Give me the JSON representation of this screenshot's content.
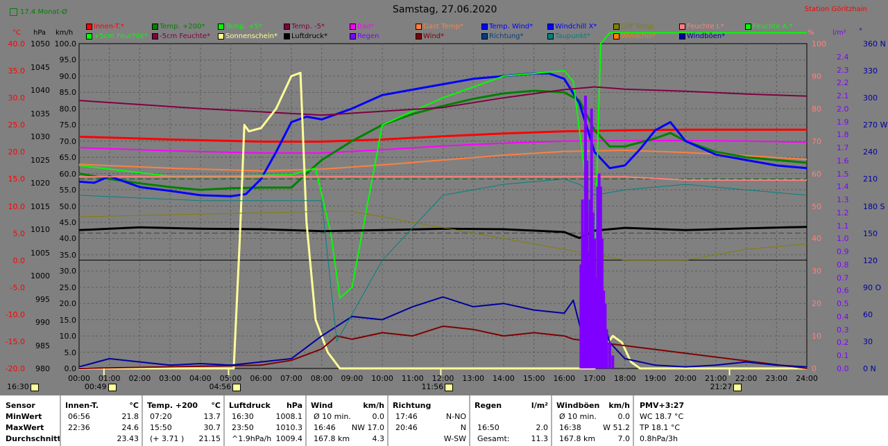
{
  "header": {
    "title": "Samstag, 27.06.2020",
    "station": "Station Göritzhain",
    "monthly_avg": "17.4 Monat-Ø"
  },
  "legend": [
    {
      "label": "Innen-T.*",
      "color": "#ff0000"
    },
    {
      "label": "Temp. +200*",
      "color": "#008000"
    },
    {
      "label": "Temp. +5*",
      "color": "#00ff00"
    },
    {
      "label": "Temp. -5*",
      "color": "#800040"
    },
    {
      "label": "Bad*",
      "color": "#ff00ff"
    },
    {
      "label": "Gast Temp*",
      "color": "#ff8040"
    },
    {
      "label": "Temp. Wind*",
      "color": "#0000ff"
    },
    {
      "label": "Windchill X*",
      "color": "#0000ff"
    },
    {
      "label": "Diff Temp.",
      "color": "#808000"
    },
    {
      "label": "Feuchte I.*",
      "color": "#ff8080"
    },
    {
      "label": "Feuchte A.*",
      "color": "#00ff00"
    },
    {
      "label": "+5cm Feuchte*",
      "color": "#00ff00"
    },
    {
      "label": "-5cm Feuchte*",
      "color": "#800040"
    },
    {
      "label": "Sonnenschein*",
      "color": "#ffff99"
    },
    {
      "label": "Luftdruck*",
      "color": "#000000"
    },
    {
      "label": "Regen",
      "color": "#8000ff"
    },
    {
      "label": "Wind*",
      "color": "#800000"
    },
    {
      "label": "Richtung*",
      "color": "#004080"
    },
    {
      "label": "Taupunkt*",
      "color": "#008080"
    },
    {
      "label": "Windchill*",
      "color": "#ff8000"
    },
    {
      "label": "Windböen*",
      "color": "#0000a0"
    }
  ],
  "axes_units": {
    "c": "°C",
    "hpa": "hPa",
    "kmh": "km/h",
    "pct": "%",
    "rain": "l/m²",
    "dir": "°"
  },
  "sun_markers": [
    {
      "label": "16:30",
      "hour": null
    },
    {
      "label": "00:49",
      "hour": 0.82
    },
    {
      "label": "04:56",
      "hour": 4.93
    },
    {
      "label": "11:56",
      "hour": 11.93
    },
    {
      "label": "21:27",
      "hour": 21.45
    }
  ],
  "chart_data": {
    "type": "line",
    "title": "Samstag, 27.06.2020",
    "x_ticks": [
      "00:00",
      "01:00",
      "02:00",
      "03:00",
      "04:00",
      "05:00",
      "06:00",
      "07:00",
      "08:00",
      "09:00",
      "10:00",
      "11:00",
      "12:00",
      "13:00",
      "14:00",
      "15:00",
      "16:00",
      "17:00",
      "18:00",
      "19:00",
      "20:00",
      "21:00",
      "22:00",
      "23:00",
      "24:00"
    ],
    "x_range_hours": [
      0,
      24
    ],
    "axes": {
      "temp_c": {
        "range": [
          -20,
          40
        ],
        "ticks": [
          "40.0",
          "35.0",
          "30.0",
          "25.0",
          "20.0",
          "15.0",
          "10.0",
          "5.0",
          "0.0",
          "-5.0",
          "-10.0",
          "-15.0",
          "-20.0"
        ],
        "color": "#ff0000"
      },
      "pressure_hpa": {
        "range": [
          980,
          1050
        ],
        "ticks": [
          "1050",
          "1045",
          "1040",
          "1035",
          "1030",
          "1025",
          "1020",
          "1015",
          "1010",
          "1005",
          "1000",
          "995",
          "990",
          "985",
          "980"
        ]
      },
      "wind_kmh": {
        "range": [
          0,
          100
        ],
        "ticks": [
          "100.0",
          "95.0",
          "90.0",
          "85.0",
          "80.0",
          "75.0",
          "70.0",
          "65.0",
          "60.0",
          "55.0",
          "50.0",
          "45.0",
          "40.0",
          "35.0",
          "30.0",
          "25.0",
          "20.0",
          "15.0",
          "10.0",
          "5.0",
          "0.0"
        ]
      },
      "humidity_pct": {
        "range": [
          0,
          100
        ],
        "ticks": [
          "100",
          "90",
          "80",
          "70",
          "60",
          "50",
          "40",
          "30",
          "20",
          "10",
          "0"
        ],
        "color": "#ff8080"
      },
      "rain_lm2": {
        "range": [
          0,
          2.5
        ],
        "ticks": [
          "2.4",
          "2.3",
          "2.2",
          "2.1",
          "2.0",
          "1.9",
          "1.8",
          "1.7",
          "1.6",
          "1.5",
          "1.4",
          "1.3",
          "1.2",
          "1.1",
          "1.0",
          "0.9",
          "0.8",
          "0.7",
          "0.6",
          "0.5",
          "0.4",
          "0.3",
          "0.2",
          "0.1",
          "0.0"
        ],
        "color": "#8000ff"
      },
      "direction_deg": {
        "range": [
          0,
          360
        ],
        "ticks": [
          "360 N",
          "330",
          "300",
          "270 W",
          "240",
          "210",
          "180 S",
          "150",
          "120",
          "90 O",
          "60",
          "30",
          "0 N"
        ]
      }
    },
    "series": [
      {
        "name": "Innen-T.*",
        "axis": "temp_c",
        "color": "#ff0000",
        "width": 3,
        "x": [
          0,
          3,
          6,
          8,
          10,
          12,
          14,
          16,
          18,
          20,
          22,
          24
        ],
        "y": [
          22.8,
          22.3,
          21.9,
          21.9,
          22.3,
          22.9,
          23.4,
          23.8,
          24.0,
          24.1,
          24.1,
          24.1
        ]
      },
      {
        "name": "Bad*",
        "axis": "temp_c",
        "color": "#ff00ff",
        "width": 2,
        "x": [
          0,
          3,
          6,
          8,
          10,
          12,
          14,
          16,
          18,
          20,
          22,
          24
        ],
        "y": [
          20.8,
          20.2,
          19.8,
          19.8,
          20.4,
          21.1,
          21.6,
          22.0,
          22.1,
          22.1,
          22.0,
          21.8
        ]
      },
      {
        "name": "Gast Temp*",
        "axis": "temp_c",
        "color": "#ff8040",
        "width": 2,
        "x": [
          0,
          3,
          6,
          8,
          10,
          12,
          14,
          16,
          18,
          20,
          22,
          24
        ],
        "y": [
          17.7,
          17.0,
          16.5,
          16.8,
          17.6,
          18.5,
          19.4,
          20.1,
          20.3,
          19.9,
          19.3,
          18.6
        ]
      },
      {
        "name": "Temp. +200*",
        "axis": "temp_c",
        "color": "#008000",
        "width": 3,
        "x": [
          0,
          1,
          2,
          3,
          4,
          5,
          6,
          7,
          7.5,
          8,
          9,
          10,
          11,
          12,
          13,
          14,
          15,
          16,
          16.5,
          17,
          17.5,
          18,
          19,
          19.5,
          20,
          21,
          22,
          23,
          24
        ],
        "y": [
          16.0,
          15.0,
          14.2,
          13.5,
          13.0,
          13.3,
          13.4,
          13.4,
          16.0,
          18.5,
          22.0,
          25.0,
          27.0,
          28.5,
          29.8,
          30.8,
          31.3,
          31.0,
          29.5,
          24.0,
          21.0,
          21.0,
          22.5,
          23.5,
          22.0,
          20.0,
          19.0,
          18.5,
          18.0
        ]
      },
      {
        "name": "Temp. Wind*",
        "axis": "temp_c",
        "color": "#0000ff",
        "width": 3,
        "x": [
          0,
          0.5,
          1,
          2,
          3,
          4,
          5,
          5.5,
          6,
          6.5,
          7,
          7.5,
          8,
          9,
          10,
          11,
          12,
          13,
          14,
          15,
          15.5,
          16,
          16.5,
          17,
          17.5,
          18,
          18.5,
          19,
          19.5,
          20,
          21,
          22,
          23,
          24
        ],
        "y": [
          14.5,
          14.3,
          15.5,
          13.5,
          12.8,
          12.0,
          11.8,
          12.2,
          15.0,
          20.0,
          25.5,
          26.5,
          26.0,
          28.0,
          30.5,
          31.5,
          32.5,
          33.5,
          34.0,
          34.5,
          34.5,
          33.5,
          29.0,
          20.0,
          17.0,
          17.5,
          20.5,
          24.0,
          25.5,
          22.0,
          19.5,
          18.5,
          17.5,
          17.0
        ]
      },
      {
        "name": "Temp. +5*",
        "axis": "temp_c",
        "color": "#00ff00",
        "width": 2,
        "x": [
          0,
          3,
          5,
          7,
          7.8,
          8.3,
          8.6,
          9,
          9.5,
          10,
          11,
          12,
          13,
          14,
          15,
          16,
          16.3,
          16.7,
          17,
          17.2,
          17.5,
          18,
          19,
          20,
          21,
          22,
          23,
          24
        ],
        "y": [
          17.5,
          15.5,
          15.5,
          15.8,
          17.0,
          5.0,
          -7.0,
          -5.0,
          10.0,
          25.0,
          27.5,
          30.0,
          32.0,
          34.0,
          34.5,
          35.0,
          33.0,
          15.0,
          0.0,
          40.0,
          42.0,
          42.0,
          42.0,
          42.0,
          42.0,
          42.0,
          42.0,
          42.0
        ]
      },
      {
        "name": "Temp. -5*",
        "axis": "temp_c",
        "color": "#800040",
        "width": 2,
        "x": [
          0,
          4,
          8,
          12,
          14,
          16,
          17,
          18,
          20,
          22,
          24
        ],
        "y": [
          29.5,
          28.0,
          26.8,
          28.2,
          30.0,
          31.5,
          32.0,
          31.6,
          31.2,
          30.7,
          30.3
        ]
      },
      {
        "name": "Luftdruck*",
        "axis": "pressure_hpa",
        "color": "#000000",
        "width": 3,
        "x": [
          0,
          2,
          4,
          6,
          8,
          10,
          12,
          14,
          16,
          16.5,
          17,
          18,
          20,
          22,
          24
        ],
        "y": [
          1009.8,
          1010.4,
          1010.1,
          1010.0,
          1009.6,
          1009.8,
          1010.1,
          1010.0,
          1009.4,
          1008.1,
          1009.7,
          1010.3,
          1009.8,
          1010.2,
          1010.5
        ]
      },
      {
        "name": "Feuchte I.*",
        "axis": "humidity_pct",
        "color": "#ff8080",
        "width": 2,
        "x": [
          0,
          4,
          8,
          12,
          14,
          16,
          18,
          20,
          22,
          24
        ],
        "y": [
          59,
          59,
          59,
          59,
          59,
          59,
          59,
          58,
          58,
          58
        ]
      },
      {
        "name": "Sonnenschein*",
        "axis": "wind_kmh",
        "color": "#ffff99",
        "width": 3,
        "x": [
          0,
          5.1,
          5.3,
          5.45,
          5.6,
          6.0,
          6.5,
          7.0,
          7.3,
          7.5,
          7.8,
          8.2,
          8.6,
          9,
          17,
          17.3,
          17.6,
          17.9,
          18.2,
          18.5,
          24
        ],
        "y": [
          0,
          0,
          40,
          75,
          73,
          74,
          80,
          90,
          91,
          45,
          15,
          5,
          0,
          0,
          0,
          6,
          10,
          8,
          2,
          0,
          0
        ]
      },
      {
        "name": "Wind*",
        "axis": "wind_kmh",
        "color": "#800000",
        "width": 2,
        "x": [
          0,
          6,
          7,
          8,
          8.5,
          9,
          10,
          11,
          12,
          13,
          14,
          15,
          16,
          16.3,
          24
        ],
        "y": [
          0,
          1,
          2.5,
          6,
          10,
          9,
          11,
          10,
          13,
          12,
          10,
          11,
          10,
          9,
          0
        ]
      },
      {
        "name": "Windböen*",
        "axis": "wind_kmh",
        "color": "#0000a0",
        "width": 2,
        "x": [
          0,
          1,
          2,
          3,
          4,
          5,
          6,
          7,
          8,
          9,
          10,
          11,
          12,
          13,
          14,
          15,
          16,
          16.3,
          16.6,
          17,
          17.5,
          18,
          19,
          20,
          21,
          22,
          23,
          24
        ],
        "y": [
          0.5,
          3,
          2,
          1,
          1.5,
          1,
          2,
          3,
          10,
          16,
          15,
          19,
          22,
          19,
          20,
          18,
          17,
          21,
          10,
          25,
          8,
          3,
          1,
          0.5,
          1,
          2,
          1,
          0.5
        ]
      },
      {
        "name": "Taupunkt*",
        "axis": "temp_c",
        "color": "#008080",
        "width": 1,
        "x": [
          0,
          4,
          8,
          8.5,
          9,
          10,
          12,
          14,
          16,
          16.5,
          17,
          18,
          20,
          22,
          24
        ],
        "y": [
          12,
          11,
          11,
          -15,
          -10,
          0,
          12,
          14,
          15,
          14,
          12,
          13,
          14,
          13,
          12
        ]
      },
      {
        "name": "Diff Temp.",
        "axis": "temp_c",
        "color": "#808000",
        "width": 1,
        "x": [
          0,
          4,
          8,
          9,
          18,
          20,
          22,
          24
        ],
        "y": [
          8,
          8.5,
          9,
          9,
          0,
          0,
          2,
          3
        ]
      },
      {
        "name": "Regen",
        "axis": "rain_lm2",
        "color": "#8000ff",
        "type": "bars",
        "x": [
          16.55,
          16.6,
          16.65,
          16.7,
          16.75,
          16.8,
          16.85,
          16.9,
          16.95,
          17.0,
          17.05,
          17.1,
          17.15,
          17.2,
          17.25,
          17.3,
          17.35,
          17.4,
          17.5,
          17.6
        ],
        "y": [
          0.8,
          1.3,
          1.0,
          2.1,
          1.6,
          0.9,
          1.3,
          2.0,
          1.2,
          1.0,
          0.7,
          1.4,
          1.5,
          1.4,
          1.0,
          0.6,
          0.5,
          0.3,
          0.2,
          0.1
        ]
      }
    ],
    "reference_lines": [
      {
        "axis": "temp_c",
        "value": 15,
        "style": "dashed",
        "color": "#006000"
      },
      {
        "axis": "temp_c",
        "value": 5,
        "style": "dashed",
        "color": "#404040"
      },
      {
        "axis": "temp_c",
        "value": 0,
        "style": "solid",
        "color": "#000000"
      }
    ]
  },
  "table": {
    "sensor": {
      "h": "Sensor",
      "r": [
        "MinWert",
        "MaxWert",
        "Durchschnitt"
      ]
    },
    "innen": {
      "h": "Innen-T.",
      "u": "°C",
      "r": [
        [
          "06:56",
          "21.8"
        ],
        [
          "22:36",
          "24.6"
        ],
        [
          "",
          "23.43"
        ]
      ]
    },
    "temp": {
      "h": "Temp. +200",
      "u": "°C",
      "r": [
        [
          "07:20",
          "13.7"
        ],
        [
          "15:50",
          "30.7"
        ],
        [
          "(+ 3.71 )",
          "21.15"
        ]
      ]
    },
    "druck": {
      "h": "Luftdruck",
      "u": "hPa",
      "r": [
        [
          "16:30",
          "1008.1"
        ],
        [
          "23:50",
          "1010.3"
        ],
        [
          "^1.9hPa/h",
          "1009.4"
        ]
      ]
    },
    "wind": {
      "h": "Wind",
      "u": "km/h",
      "r": [
        [
          "Ø 10 min.",
          "0.0"
        ],
        [
          "16:46",
          "NW 17.0"
        ],
        [
          "167.8 km",
          "4.3"
        ]
      ]
    },
    "richtung": {
      "h": "Richtung",
      "u": "",
      "r": [
        [
          "17:46",
          "N-NO"
        ],
        [
          "20:46",
          "N"
        ],
        [
          "",
          "W-SW"
        ]
      ]
    },
    "regen": {
      "h": "Regen",
      "u": "l/m²",
      "r": [
        [
          "",
          ""
        ],
        [
          "16:50",
          "2.0"
        ],
        [
          "Gesamt:",
          "11.3"
        ]
      ]
    },
    "boeen": {
      "h": "Windböen",
      "u": "km/h",
      "r": [
        [
          "Ø 10 min.",
          "0.0"
        ],
        [
          "16:38",
          "W 51.2"
        ],
        [
          "167.8 km",
          "7.0"
        ]
      ]
    },
    "pmv": {
      "h": "PMV+3:27",
      "r": [
        "WC 18.7 °C",
        "TP 18.1 °C",
        "0.8hPa/3h"
      ]
    }
  }
}
